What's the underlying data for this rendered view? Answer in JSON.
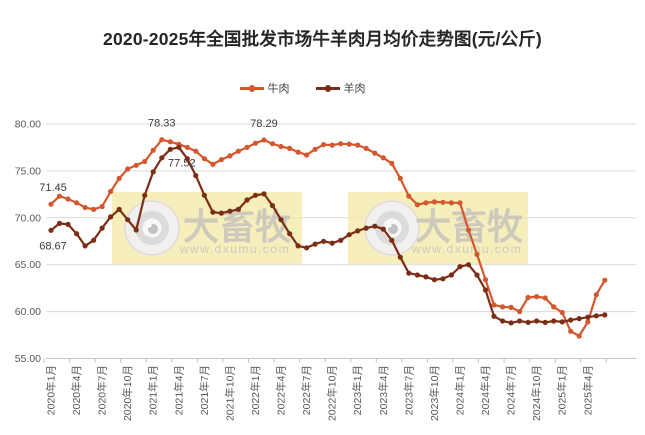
{
  "title": "2020-2025年全国批发市场牛羊肉月均价走势图(元/公斤)",
  "legend": [
    {
      "label": "牛肉",
      "color": "#D4572E"
    },
    {
      "label": "羊肉",
      "color": "#7C2D16"
    }
  ],
  "watermark": {
    "brand": "大畜牧",
    "url": "www.dxumu.com",
    "box_color": "#F3E9A6",
    "text_color": "#C9C5BC"
  },
  "axes": {
    "y_tick_labels": [
      "55.00",
      "60.00",
      "65.00",
      "70.00",
      "75.00",
      "80.00"
    ]
  },
  "chart_data": {
    "type": "line",
    "title": "2020-2025年全国批发市场牛羊肉月均价走势图(元/公斤)",
    "ylim": [
      55,
      80
    ],
    "y_tick_step": 5,
    "grid": "horizontal",
    "legend_position": "top",
    "x_tick_label_every": 3,
    "x": [
      "2020年1月",
      "2020年2月",
      "2020年3月",
      "2020年4月",
      "2020年5月",
      "2020年6月",
      "2020年7月",
      "2020年8月",
      "2020年9月",
      "2020年10月",
      "2020年11月",
      "2020年12月",
      "2021年1月",
      "2021年2月",
      "2021年3月",
      "2021年4月",
      "2021年5月",
      "2021年6月",
      "2021年7月",
      "2021年8月",
      "2021年9月",
      "2021年10月",
      "2021年11月",
      "2021年12月",
      "2022年1月",
      "2022年2月",
      "2022年3月",
      "2022年4月",
      "2022年5月",
      "2022年6月",
      "2022年7月",
      "2022年8月",
      "2022年9月",
      "2022年10月",
      "2022年11月",
      "2022年12月",
      "2023年1月",
      "2023年2月",
      "2023年3月",
      "2023年4月",
      "2023年5月",
      "2023年6月",
      "2023年7月",
      "2023年8月",
      "2023年9月",
      "2023年10月",
      "2023年11月",
      "2023年12月",
      "2024年1月",
      "2024年2月",
      "2024年3月",
      "2024年4月",
      "2024年5月",
      "2024年6月",
      "2024年7月",
      "2024年8月",
      "2024年9月",
      "2024年10月",
      "2024年11月",
      "2024年12月",
      "2025年1月",
      "2025年2月",
      "2025年3月",
      "2025年4月",
      "2025年5月",
      "2025年6月"
    ],
    "series": [
      {
        "name": "牛肉",
        "color": "#D4572E",
        "values": [
          71.45,
          72.3,
          72.0,
          71.6,
          71.1,
          70.9,
          71.2,
          72.8,
          74.2,
          75.2,
          75.6,
          76.0,
          77.2,
          78.33,
          78.1,
          77.85,
          77.5,
          77.1,
          76.3,
          75.7,
          76.2,
          76.6,
          77.1,
          77.5,
          77.95,
          78.29,
          77.9,
          77.6,
          77.4,
          77.0,
          76.7,
          77.3,
          77.8,
          77.75,
          77.9,
          77.85,
          77.75,
          77.4,
          76.9,
          76.4,
          75.8,
          74.2,
          72.3,
          71.4,
          71.6,
          71.7,
          71.65,
          71.6,
          71.6,
          68.7,
          66.1,
          63.4,
          60.7,
          60.5,
          60.45,
          60.0,
          61.5,
          61.6,
          61.45,
          60.5,
          59.9,
          57.9,
          57.4,
          58.9,
          61.8,
          63.35
        ]
      },
      {
        "name": "羊肉",
        "color": "#7C2D16",
        "values": [
          68.67,
          69.4,
          69.3,
          68.3,
          67.0,
          67.6,
          68.9,
          70.1,
          70.9,
          69.8,
          68.7,
          72.4,
          74.9,
          76.4,
          77.3,
          77.52,
          76.3,
          74.5,
          72.4,
          70.6,
          70.5,
          70.7,
          70.9,
          71.9,
          72.4,
          72.55,
          71.3,
          69.8,
          68.3,
          67.0,
          66.8,
          67.2,
          67.5,
          67.3,
          67.6,
          68.2,
          68.6,
          68.9,
          69.1,
          68.8,
          67.6,
          65.8,
          64.1,
          63.9,
          63.7,
          63.4,
          63.5,
          63.9,
          64.8,
          65.0,
          63.9,
          62.3,
          59.5,
          59.0,
          58.8,
          59.0,
          58.85,
          59.0,
          58.85,
          59.0,
          58.9,
          59.1,
          59.25,
          59.4,
          59.55,
          59.65
        ]
      }
    ],
    "annotations": [
      {
        "series": "牛肉",
        "month": "2020年1月",
        "text": "71.45"
      },
      {
        "series": "羊肉",
        "month": "2020年1月",
        "text": "68.67"
      },
      {
        "series": "牛肉",
        "month": "2021年2月",
        "text": "78.33"
      },
      {
        "series": "羊肉",
        "month": "2021年4月",
        "text": "77.52"
      },
      {
        "series": "牛肉",
        "month": "2022年2月",
        "text": "78.29"
      }
    ]
  }
}
